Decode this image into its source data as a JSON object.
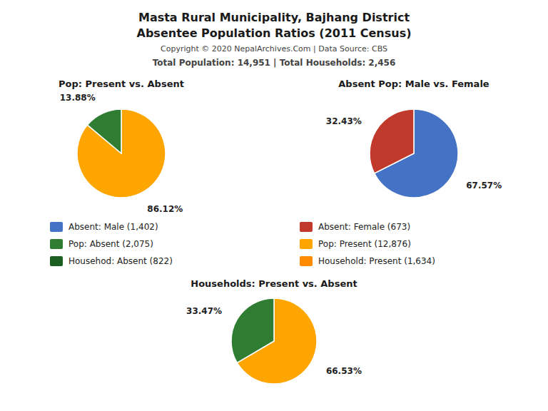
{
  "title": "Masta Rural Municipality, Bajhang District",
  "subtitle": "Absentee Population Ratios (2011 Census)",
  "annotations": [
    "Copyright © 2020 NepalArchives.Com | Data Source: CBS",
    "Total Population: 14,951 | Total Households: 2,456"
  ],
  "legend_items": [
    {
      "label": "Absent: Male (1,402)",
      "color": "#4472C4"
    },
    {
      "label": "Absent: Female (673)",
      "color": "#C0392B"
    },
    {
      "label": "Pop: Absent (2,075)",
      "color": "#2E7D32"
    },
    {
      "label": "Pop: Present (12,876)",
      "color": "#FFA500"
    },
    {
      "label": "Househod: Absent (822)",
      "color": "#1B5E20"
    },
    {
      "label": "Household: Present (1,634)",
      "color": "#FF8C00"
    }
  ],
  "chart_data": [
    {
      "type": "pie",
      "title": "Pop: Present vs. Absent",
      "values": [
        86.12,
        13.88
      ],
      "value_labels": [
        "86.12%",
        "13.88%"
      ],
      "colors": [
        "#FFA500",
        "#2E7D32"
      ],
      "data_labels": true
    },
    {
      "type": "pie",
      "title": "Absent Pop: Male vs. Female",
      "values": [
        67.57,
        32.43
      ],
      "value_labels": [
        "67.57%",
        "32.43%"
      ],
      "colors": [
        "#4472C4",
        "#C0392B"
      ],
      "data_labels": true
    },
    {
      "type": "pie",
      "title": "Households: Present vs. Absent",
      "values": [
        66.53,
        33.47
      ],
      "value_labels": [
        "66.53%",
        "33.47%"
      ],
      "colors": [
        "#FFA500",
        "#2E7D32"
      ],
      "data_labels": true
    }
  ]
}
